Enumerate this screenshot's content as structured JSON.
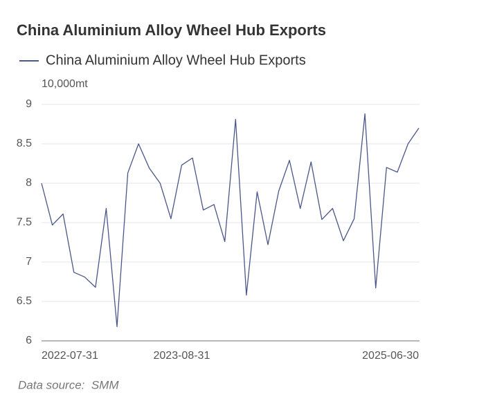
{
  "chart_data": {
    "type": "line",
    "title": "China Aluminium Alloy Wheel Hub Exports",
    "y_unit": "10,000mt",
    "source": "Data source:  SMM",
    "categories": [
      "2022-07-31",
      null,
      null,
      null,
      null,
      null,
      null,
      null,
      null,
      null,
      null,
      null,
      null,
      "2023-08-31",
      null,
      null,
      null,
      null,
      null,
      null,
      null,
      null,
      null,
      null,
      null,
      null,
      null,
      null,
      null,
      null,
      null,
      null,
      null,
      null,
      null,
      "2025-06-30"
    ],
    "series": [
      {
        "name": "China Aluminium Alloy Wheel Hub Exports",
        "color": "#4a5689",
        "values": [
          8.0,
          7.47,
          7.61,
          6.87,
          6.81,
          6.68,
          7.68,
          6.18,
          8.13,
          8.5,
          8.19,
          8.0,
          7.55,
          8.23,
          8.32,
          7.66,
          7.73,
          7.26,
          8.81,
          6.58,
          7.89,
          7.22,
          7.9,
          8.29,
          7.68,
          8.27,
          7.54,
          7.68,
          7.27,
          7.55,
          8.88,
          6.67,
          8.2,
          8.14,
          8.5,
          8.7
        ]
      }
    ],
    "ylim": [
      6,
      9
    ],
    "yticks": [
      6,
      6.5,
      7,
      7.5,
      8,
      8.5,
      9
    ],
    "grid": true
  }
}
